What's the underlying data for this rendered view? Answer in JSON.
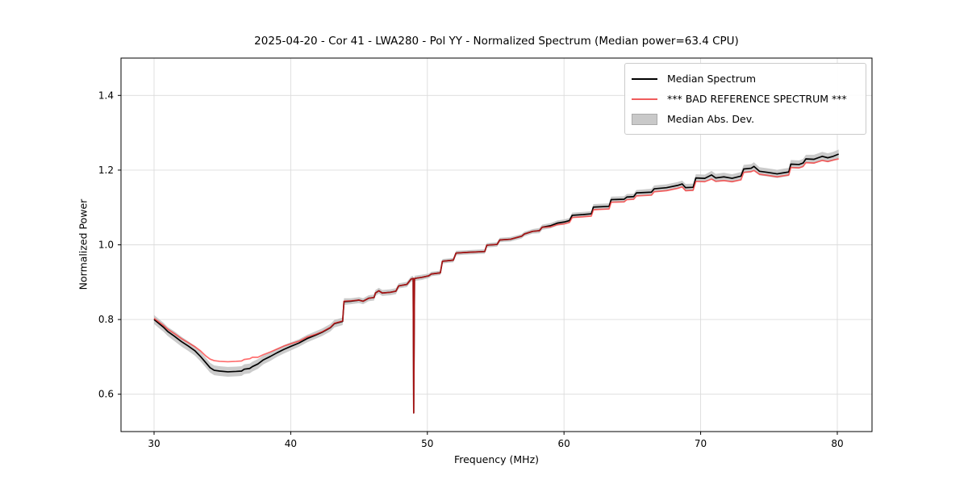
{
  "chart_data": {
    "type": "line",
    "title": "2025-04-20 - Cor 41 - LWA280 - Pol YY - Normalized Spectrum (Median power=63.4 CPU)",
    "xlabel": "Frequency (MHz)",
    "ylabel": "Normalized Power",
    "xlim": [
      27.58,
      82.54
    ],
    "ylim": [
      0.5,
      1.5
    ],
    "xticks": [
      30,
      40,
      50,
      60,
      70,
      80
    ],
    "xtick_labels": [
      "30",
      "40",
      "50",
      "60",
      "70",
      "80"
    ],
    "yticks": [
      0.6,
      0.8,
      1.0,
      1.2,
      1.4
    ],
    "ytick_labels": [
      "0.6",
      "0.8",
      "1.0",
      "1.2",
      "1.4"
    ],
    "grid": true,
    "grid_color": "#dcdcdc",
    "legend": {
      "position": "upper right",
      "entries": [
        {
          "label": "Median Spectrum",
          "type": "line",
          "color": "#000000"
        },
        {
          "label": "*** BAD REFERENCE SPECTRUM ***",
          "type": "line",
          "color": "#f05c5c"
        },
        {
          "label": "Median Abs. Dev.",
          "type": "patch",
          "color": "#c9c9c9"
        }
      ]
    },
    "series_colors": {
      "median_spectrum": "#000000",
      "bad_reference": "#ff1f1f",
      "bad_reference_opacity": 0.65,
      "mad_band_fill": "#c2c2c2"
    },
    "notable_values": {
      "start_mhz": 30.0,
      "end_mhz": 80.1,
      "minimum_power": 0.66,
      "minimum_at_mhz": 35,
      "dropout_at_mhz": 49.0,
      "dropout_power": 0.55,
      "end_power": 1.24
    },
    "points_format": [
      "freq_mhz",
      "median_spectrum",
      "bad_reference_spectrum",
      "median_abs_dev"
    ],
    "points": [
      [
        30.0,
        0.8,
        0.803,
        0.012
      ],
      [
        30.3,
        0.791,
        0.795,
        0.012
      ],
      [
        30.7,
        0.779,
        0.784,
        0.012
      ],
      [
        31.0,
        0.768,
        0.774,
        0.012
      ],
      [
        31.5,
        0.755,
        0.762,
        0.013
      ],
      [
        32.0,
        0.741,
        0.749,
        0.013
      ],
      [
        32.5,
        0.729,
        0.738,
        0.013
      ],
      [
        33.0,
        0.716,
        0.727,
        0.013
      ],
      [
        33.4,
        0.701,
        0.716,
        0.013
      ],
      [
        33.8,
        0.684,
        0.702,
        0.013
      ],
      [
        34.1,
        0.671,
        0.694,
        0.013
      ],
      [
        34.4,
        0.664,
        0.69,
        0.013
      ],
      [
        34.8,
        0.662,
        0.688,
        0.013
      ],
      [
        35.4,
        0.66,
        0.687,
        0.013
      ],
      [
        36.0,
        0.661,
        0.688,
        0.013
      ],
      [
        36.4,
        0.662,
        0.689,
        0.013
      ],
      [
        36.6,
        0.667,
        0.693,
        0.013
      ],
      [
        37.0,
        0.669,
        0.695,
        0.013
      ],
      [
        37.2,
        0.674,
        0.699,
        0.013
      ],
      [
        37.6,
        0.681,
        0.699,
        0.013
      ],
      [
        38.0,
        0.692,
        0.706,
        0.012
      ],
      [
        38.5,
        0.701,
        0.713,
        0.012
      ],
      [
        39.0,
        0.711,
        0.721,
        0.011
      ],
      [
        39.5,
        0.72,
        0.729,
        0.011
      ],
      [
        40.0,
        0.728,
        0.735,
        0.011
      ],
      [
        40.6,
        0.737,
        0.742,
        0.01
      ],
      [
        41.2,
        0.749,
        0.753,
        0.01
      ],
      [
        41.8,
        0.758,
        0.76,
        0.01
      ],
      [
        42.3,
        0.766,
        0.767,
        0.01
      ],
      [
        42.9,
        0.778,
        0.779,
        0.01
      ],
      [
        43.2,
        0.789,
        0.79,
        0.01
      ],
      [
        43.8,
        0.795,
        0.796,
        0.01
      ],
      [
        43.9,
        0.848,
        0.849,
        0.009
      ],
      [
        44.4,
        0.849,
        0.85,
        0.008
      ],
      [
        45.0,
        0.852,
        0.852,
        0.008
      ],
      [
        45.3,
        0.849,
        0.849,
        0.008
      ],
      [
        45.7,
        0.857,
        0.857,
        0.008
      ],
      [
        46.1,
        0.859,
        0.859,
        0.008
      ],
      [
        46.2,
        0.871,
        0.871,
        0.008
      ],
      [
        46.45,
        0.877,
        0.877,
        0.008
      ],
      [
        46.7,
        0.871,
        0.871,
        0.008
      ],
      [
        47.3,
        0.873,
        0.873,
        0.008
      ],
      [
        47.7,
        0.876,
        0.876,
        0.008
      ],
      [
        47.9,
        0.89,
        0.89,
        0.007
      ],
      [
        48.5,
        0.894,
        0.894,
        0.007
      ],
      [
        48.8,
        0.908,
        0.908,
        0.007
      ],
      [
        48.96,
        0.91,
        0.91,
        0.007
      ],
      [
        49.0,
        0.55,
        0.55,
        0.007
      ],
      [
        49.06,
        0.91,
        0.91,
        0.007
      ],
      [
        49.6,
        0.913,
        0.913,
        0.007
      ],
      [
        50.1,
        0.917,
        0.917,
        0.006
      ],
      [
        50.3,
        0.922,
        0.922,
        0.006
      ],
      [
        50.95,
        0.925,
        0.925,
        0.006
      ],
      [
        51.1,
        0.956,
        0.956,
        0.006
      ],
      [
        51.9,
        0.959,
        0.959,
        0.006
      ],
      [
        52.1,
        0.978,
        0.978,
        0.006
      ],
      [
        53.0,
        0.98,
        0.98,
        0.006
      ],
      [
        54.2,
        0.982,
        0.982,
        0.006
      ],
      [
        54.35,
        0.999,
        0.999,
        0.006
      ],
      [
        55.1,
        1.001,
        1.001,
        0.006
      ],
      [
        55.3,
        1.013,
        1.013,
        0.006
      ],
      [
        56.1,
        1.015,
        1.015,
        0.006
      ],
      [
        56.9,
        1.023,
        1.023,
        0.006
      ],
      [
        57.1,
        1.029,
        1.029,
        0.006
      ],
      [
        57.7,
        1.036,
        1.036,
        0.006
      ],
      [
        58.2,
        1.038,
        1.038,
        0.007
      ],
      [
        58.4,
        1.047,
        1.047,
        0.007
      ],
      [
        59.0,
        1.051,
        1.048,
        0.007
      ],
      [
        59.5,
        1.058,
        1.054,
        0.007
      ],
      [
        60.0,
        1.061,
        1.056,
        0.007
      ],
      [
        60.4,
        1.065,
        1.06,
        0.007
      ],
      [
        60.6,
        1.079,
        1.073,
        0.007
      ],
      [
        61.4,
        1.081,
        1.075,
        0.007
      ],
      [
        62.0,
        1.083,
        1.077,
        0.007
      ],
      [
        62.15,
        1.101,
        1.094,
        0.008
      ],
      [
        63.3,
        1.103,
        1.096,
        0.008
      ],
      [
        63.45,
        1.121,
        1.114,
        0.008
      ],
      [
        64.4,
        1.122,
        1.115,
        0.008
      ],
      [
        64.6,
        1.128,
        1.121,
        0.008
      ],
      [
        65.1,
        1.129,
        1.122,
        0.008
      ],
      [
        65.3,
        1.139,
        1.131,
        0.008
      ],
      [
        66.4,
        1.141,
        1.133,
        0.009
      ],
      [
        66.6,
        1.15,
        1.142,
        0.009
      ],
      [
        67.5,
        1.153,
        1.145,
        0.009
      ],
      [
        68.3,
        1.159,
        1.151,
        0.009
      ],
      [
        68.65,
        1.163,
        1.155,
        0.009
      ],
      [
        68.9,
        1.153,
        1.145,
        0.01
      ],
      [
        69.45,
        1.154,
        1.146,
        0.01
      ],
      [
        69.65,
        1.179,
        1.17,
        0.01
      ],
      [
        70.3,
        1.178,
        1.169,
        0.01
      ],
      [
        70.8,
        1.187,
        1.176,
        0.011
      ],
      [
        71.1,
        1.179,
        1.17,
        0.011
      ],
      [
        71.7,
        1.182,
        1.172,
        0.011
      ],
      [
        72.3,
        1.178,
        1.169,
        0.011
      ],
      [
        72.95,
        1.184,
        1.174,
        0.011
      ],
      [
        73.15,
        1.203,
        1.194,
        0.011
      ],
      [
        73.7,
        1.205,
        1.196,
        0.011
      ],
      [
        73.9,
        1.21,
        1.199,
        0.011
      ],
      [
        74.3,
        1.197,
        1.189,
        0.011
      ],
      [
        74.9,
        1.194,
        1.186,
        0.011
      ],
      [
        75.6,
        1.19,
        1.182,
        0.011
      ],
      [
        76.1,
        1.193,
        1.185,
        0.011
      ],
      [
        76.45,
        1.195,
        1.187,
        0.011
      ],
      [
        76.6,
        1.216,
        1.207,
        0.011
      ],
      [
        77.2,
        1.215,
        1.206,
        0.011
      ],
      [
        77.5,
        1.219,
        1.21,
        0.011
      ],
      [
        77.7,
        1.23,
        1.22,
        0.011
      ],
      [
        78.3,
        1.229,
        1.219,
        0.012
      ],
      [
        78.9,
        1.237,
        1.226,
        0.012
      ],
      [
        79.3,
        1.233,
        1.223,
        0.012
      ],
      [
        79.7,
        1.237,
        1.227,
        0.012
      ],
      [
        80.1,
        1.243,
        1.23,
        0.012
      ]
    ]
  }
}
